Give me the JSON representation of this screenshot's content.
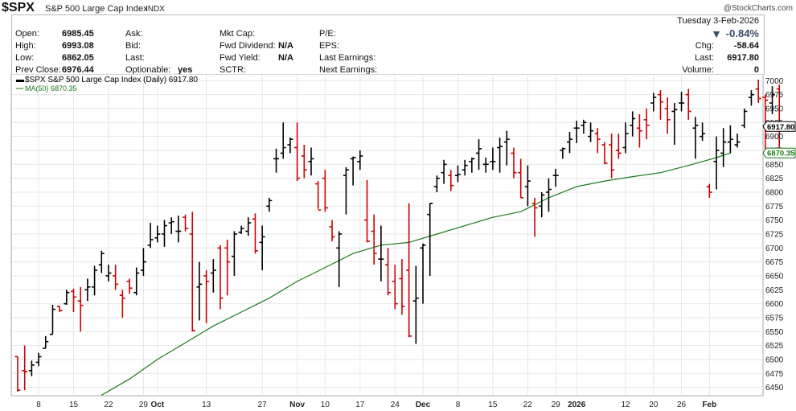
{
  "header": {
    "symbol": "$SPX",
    "name": "S&P 500 Large Cap Index",
    "exchange": "INDX",
    "credit": "@StockCharts.com"
  },
  "quote": {
    "date": "Tuesday  3-Feb-2026",
    "pct_change": "-0.84%",
    "labels": {
      "open": "Open:",
      "high": "High:",
      "low": "Low:",
      "prev_close": "Prev Close:",
      "ask": "Ask:",
      "bid": "Bid:",
      "last": "Last:",
      "optionable": "Optionable:",
      "mkt_cap": "Mkt Cap:",
      "fwd_dividend": "Fwd Dividend:",
      "fwd_yield": "Fwd Yield:",
      "sctr": "SCTR:",
      "pe": "P/E:",
      "eps": "EPS:",
      "last_earnings": "Last Earnings:",
      "next_earnings": "Next Earnings:",
      "chg": "Chg:",
      "last_right": "Last:",
      "volume": "Volume:"
    },
    "values": {
      "open": "6985.45",
      "high": "6993.08",
      "low": "6862.05",
      "prev_close": "6976.44",
      "optionable": "yes",
      "fwd_dividend": "N/A",
      "fwd_yield": "N/A",
      "chg": "-58.64",
      "last": "6917.80",
      "volume": "0"
    },
    "colors": {
      "down": "#cc0000",
      "down_arrow": "#3a4a6a"
    }
  },
  "chart_data": {
    "type": "ohlc",
    "legend": [
      "$SPX S&P 500 Large Cap Index (Daily) 6917.80",
      "MA(50) 6870.35"
    ],
    "colors": {
      "up": "#000000",
      "down": "#cc0000",
      "ma": "#1a7a1a",
      "grid": "#e6e6e6",
      "frame": "#a9a9a9"
    },
    "grid": true,
    "y_axis": {
      "side": "right",
      "ylim": [
        6435,
        7012
      ],
      "ticks": [
        6450,
        6475,
        6500,
        6525,
        6550,
        6575,
        6600,
        6625,
        6650,
        6675,
        6700,
        6725,
        6750,
        6775,
        6800,
        6825,
        6850,
        6875,
        6900,
        6925,
        6950,
        6975,
        7000
      ]
    },
    "x_labels": [
      {
        "i": 3,
        "label": "8"
      },
      {
        "i": 8,
        "label": "15"
      },
      {
        "i": 13,
        "label": "22"
      },
      {
        "i": 18,
        "label": "29"
      },
      {
        "i": 20,
        "label": "Oct"
      },
      {
        "i": 27,
        "label": "13"
      },
      {
        "i": 35,
        "label": "27"
      },
      {
        "i": 40,
        "label": "Nov"
      },
      {
        "i": 44,
        "label": "10"
      },
      {
        "i": 49,
        "label": "17"
      },
      {
        "i": 54,
        "label": "24"
      },
      {
        "i": 58,
        "label": "Dec"
      },
      {
        "i": 63,
        "label": "8"
      },
      {
        "i": 68,
        "label": "15"
      },
      {
        "i": 73,
        "label": "22"
      },
      {
        "i": 77,
        "label": "29"
      },
      {
        "i": 80,
        "label": "2026"
      },
      {
        "i": 87,
        "label": "12"
      },
      {
        "i": 91,
        "label": "20"
      },
      {
        "i": 95,
        "label": "26"
      },
      {
        "i": 99,
        "label": "Feb"
      }
    ],
    "ohlc": [
      [
        6505,
        6505,
        6442,
        6445
      ],
      [
        6480,
        6525,
        6445,
        6478
      ],
      [
        6480,
        6498,
        6470,
        6490
      ],
      [
        6495,
        6512,
        6488,
        6505
      ],
      [
        6520,
        6542,
        6520,
        6532
      ],
      [
        6545,
        6598,
        6545,
        6590
      ],
      [
        6595,
        6596,
        6585,
        6588
      ],
      [
        6600,
        6625,
        6598,
        6620
      ],
      [
        6622,
        6627,
        6585,
        6612
      ],
      [
        6605,
        6630,
        6550,
        6597
      ],
      [
        6625,
        6645,
        6605,
        6630
      ],
      [
        6630,
        6668,
        6615,
        6660
      ],
      [
        6670,
        6695,
        6655,
        6690
      ],
      [
        6650,
        6670,
        6640,
        6655
      ],
      [
        6650,
        6670,
        6625,
        6635
      ],
      [
        6615,
        6625,
        6575,
        6610
      ],
      [
        6640,
        6645,
        6618,
        6628
      ],
      [
        6620,
        6665,
        6615,
        6655
      ],
      [
        6660,
        6700,
        6650,
        6675
      ],
      [
        6705,
        6745,
        6700,
        6715
      ],
      [
        6718,
        6740,
        6710,
        6725
      ],
      [
        6725,
        6750,
        6702,
        6740
      ],
      [
        6745,
        6755,
        6725,
        6747
      ],
      [
        6730,
        6758,
        6710,
        6730
      ],
      [
        6755,
        6760,
        6730,
        6735
      ],
      [
        6725,
        6765,
        6550,
        6552
      ],
      [
        6630,
        6675,
        6570,
        6635
      ],
      [
        6650,
        6660,
        6565,
        6640
      ],
      [
        6655,
        6680,
        6620,
        6660
      ],
      [
        6700,
        6705,
        6590,
        6610
      ],
      [
        6700,
        6715,
        6615,
        6675
      ],
      [
        6685,
        6730,
        6650,
        6725
      ],
      [
        6728,
        6740,
        6725,
        6735
      ],
      [
        6730,
        6755,
        6722,
        6745
      ],
      [
        6752,
        6762,
        6690,
        6695
      ],
      [
        6710,
        6740,
        6660,
        6720
      ],
      [
        6775,
        6790,
        6765,
        6785
      ],
      [
        6860,
        6878,
        6835,
        6860
      ],
      [
        6870,
        6925,
        6860,
        6880
      ],
      [
        6885,
        6898,
        6870,
        6895
      ],
      [
        6880,
        6925,
        6820,
        6825
      ],
      [
        6865,
        6885,
        6825,
        6840
      ],
      [
        6855,
        6880,
        6830,
        6860
      ],
      [
        6815,
        6820,
        6770,
        6768
      ],
      [
        6825,
        6840,
        6765,
        6772
      ],
      [
        6738,
        6750,
        6712,
        6720
      ],
      [
        6700,
        6730,
        6630,
        6725
      ],
      [
        6830,
        6845,
        6760,
        6840
      ],
      [
        6860,
        6864,
        6812,
        6862
      ],
      [
        6855,
        6875,
        6840,
        6865
      ],
      [
        6750,
        6822,
        6710,
        6712
      ],
      [
        6730,
        6760,
        6670,
        6690
      ],
      [
        6680,
        6740,
        6640,
        6680
      ],
      [
        6670,
        6700,
        6615,
        6620
      ],
      [
        6640,
        6670,
        6590,
        6600
      ],
      [
        6645,
        6680,
        6580,
        6595
      ],
      [
        6660,
        6780,
        6540,
        6542
      ],
      [
        6605,
        6668,
        6528,
        6610
      ],
      [
        6700,
        6708,
        6600,
        6705
      ],
      [
        6760,
        6780,
        6650,
        6780
      ],
      [
        6810,
        6830,
        6800,
        6825
      ],
      [
        6835,
        6858,
        6815,
        6850
      ],
      [
        6830,
        6840,
        6802,
        6812
      ],
      [
        6830,
        6848,
        6818,
        6832
      ],
      [
        6840,
        6858,
        6830,
        6848
      ],
      [
        6855,
        6862,
        6835,
        6860
      ],
      [
        6870,
        6895,
        6840,
        6878
      ],
      [
        6850,
        6862,
        6835,
        6850
      ],
      [
        6855,
        6880,
        6840,
        6855
      ],
      [
        6880,
        6898,
        6835,
        6882
      ],
      [
        6890,
        6910,
        6848,
        6895
      ],
      [
        6870,
        6880,
        6825,
        6835
      ],
      [
        6835,
        6860,
        6790,
        6790
      ],
      [
        6810,
        6848,
        6775,
        6820
      ],
      [
        6780,
        6790,
        6720,
        6772
      ],
      [
        6775,
        6800,
        6755,
        6795
      ],
      [
        6800,
        6825,
        6765,
        6805
      ],
      [
        6830,
        6842,
        6810,
        6830
      ],
      [
        6875,
        6880,
        6860,
        6878
      ],
      [
        6890,
        6908,
        6870,
        6895
      ],
      [
        6915,
        6928,
        6888,
        6915
      ],
      [
        6920,
        6930,
        6905,
        6925
      ],
      [
        6900,
        6925,
        6890,
        6910
      ],
      [
        6905,
        6915,
        6870,
        6895
      ],
      [
        6885,
        6890,
        6850,
        6852
      ],
      [
        6885,
        6905,
        6825,
        6840
      ],
      [
        6875,
        6905,
        6860,
        6870
      ],
      [
        6880,
        6925,
        6870,
        6905
      ],
      [
        6920,
        6945,
        6900,
        6932
      ],
      [
        6915,
        6940,
        6880,
        6910
      ],
      [
        6930,
        6950,
        6895,
        6920
      ],
      [
        6960,
        6978,
        6945,
        6970
      ],
      [
        6975,
        6983,
        6930,
        6962
      ],
      [
        6950,
        6970,
        6905,
        6930
      ],
      [
        6945,
        6960,
        6885,
        6948
      ],
      [
        6960,
        6980,
        6945,
        6960
      ],
      [
        6975,
        6985,
        6930,
        6945
      ],
      [
        6915,
        6935,
        6860,
        6920
      ],
      [
        6900,
        6925,
        6892,
        6905
      ],
      [
        6810,
        6815,
        6790,
        6800
      ],
      [
        6855,
        6900,
        6805,
        6875
      ],
      [
        6870,
        6915,
        6845,
        6890
      ],
      [
        6890,
        6920,
        6870,
        6895
      ],
      [
        6885,
        6905,
        6880,
        6890
      ],
      [
        6920,
        6950,
        6915,
        6945
      ],
      [
        6970,
        6983,
        6955,
        6975
      ],
      [
        6985,
        7002,
        6960,
        6968
      ],
      [
        6970,
        6975,
        6870,
        6965
      ],
      [
        6960,
        6990,
        6940,
        6975
      ],
      [
        6985,
        6993,
        6862,
        6917.8
      ]
    ],
    "ma50": [
      [
        12,
        6436
      ],
      [
        16,
        6465
      ],
      [
        20,
        6500
      ],
      [
        24,
        6530
      ],
      [
        28,
        6560
      ],
      [
        32,
        6585
      ],
      [
        36,
        6610
      ],
      [
        40,
        6640
      ],
      [
        44,
        6665
      ],
      [
        48,
        6690
      ],
      [
        52,
        6705
      ],
      [
        56,
        6710
      ],
      [
        60,
        6725
      ],
      [
        64,
        6740
      ],
      [
        68,
        6755
      ],
      [
        72,
        6765
      ],
      [
        76,
        6790
      ],
      [
        80,
        6810
      ],
      [
        84,
        6820
      ],
      [
        88,
        6828
      ],
      [
        92,
        6835
      ],
      [
        96,
        6848
      ],
      [
        100,
        6862
      ],
      [
        102,
        6870.35
      ]
    ],
    "last_price": "6917.80",
    "last_ma": "6870.35"
  }
}
